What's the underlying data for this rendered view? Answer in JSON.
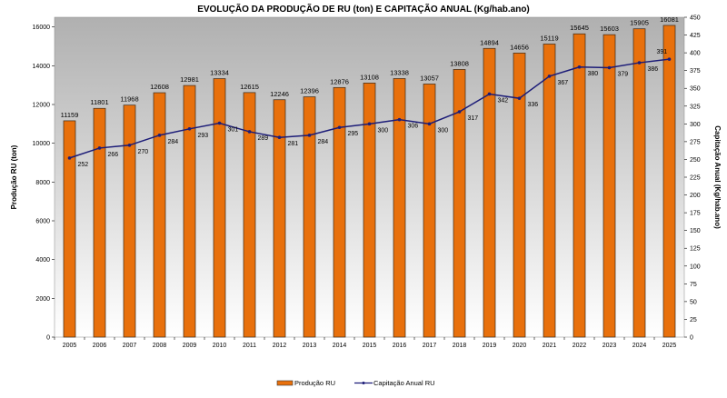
{
  "chart_data": {
    "type": "bar+line",
    "title": "EVOLUÇÃO  DA PRODUÇÃO  DE RU (ton) E CAPITAÇÃO  ANUAL  (Kg/hab.ano)",
    "ylabel": "Produção RU  (ton)",
    "y2label": "Capitação Anual  (Kg/hab.ano)",
    "ylim": [
      0,
      16500
    ],
    "y2lim": [
      0,
      450
    ],
    "yticks": [
      0,
      2000,
      4000,
      6000,
      8000,
      10000,
      12000,
      14000,
      16000
    ],
    "y2ticks": [
      0,
      25,
      50,
      75,
      100,
      125,
      150,
      175,
      200,
      225,
      250,
      275,
      300,
      325,
      350,
      375,
      400,
      425,
      450
    ],
    "categories": [
      "2005",
      "2006",
      "2007",
      "2008",
      "2009",
      "2010",
      "2011",
      "2012",
      "2013",
      "2014",
      "2015",
      "2016",
      "2017",
      "2018",
      "2019",
      "2020",
      "2021",
      "2022",
      "2023",
      "2024",
      "2025"
    ],
    "series": [
      {
        "name": "Produção RU",
        "type": "bar",
        "axis": "left",
        "color": "#e8700c",
        "values": [
          11159,
          11801,
          11968,
          12608,
          12981,
          13334,
          12615,
          12246,
          12396,
          12876,
          13108,
          13338,
          13057,
          13808,
          14894,
          14656,
          15119,
          15645,
          15603,
          15905,
          16081
        ]
      },
      {
        "name": "Capitação Anual RU",
        "type": "line",
        "axis": "right",
        "color": "#1c1c78",
        "values": [
          252,
          266,
          270,
          284,
          293,
          301,
          289,
          281,
          284,
          295,
          300,
          306,
          300,
          317,
          342,
          336,
          367,
          380,
          379,
          386,
          391
        ]
      }
    ],
    "legend_position": "bottom",
    "grid": false
  }
}
